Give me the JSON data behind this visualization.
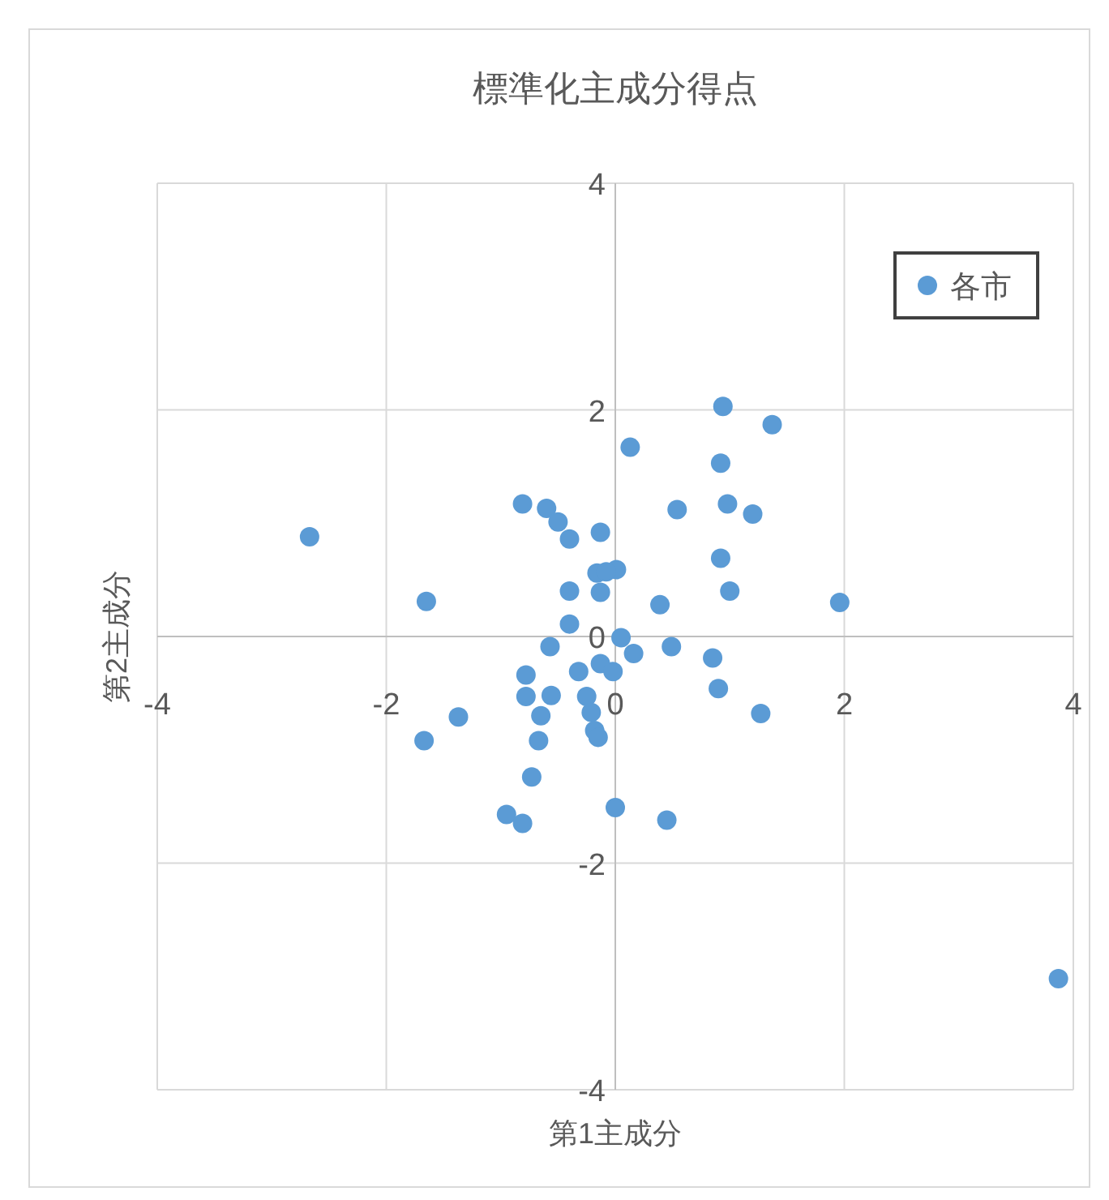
{
  "chart_data": {
    "type": "scatter",
    "title": "標準化主成分得点",
    "xlabel": "第1主成分",
    "ylabel": "第2主成分",
    "x": [
      -2.67,
      -1.65,
      -1.37,
      -1.67,
      -0.81,
      -0.6,
      -0.5,
      -0.4,
      -0.13,
      -0.16,
      0.01,
      -0.08,
      -0.4,
      -0.13,
      -0.4,
      -0.57,
      -0.78,
      -0.78,
      -0.56,
      -0.65,
      -0.67,
      -0.73,
      -0.95,
      -0.81,
      -0.32,
      -0.13,
      -0.02,
      -0.25,
      -0.21,
      -0.18,
      -0.15,
      0.05,
      0.16,
      0.0,
      0.45,
      0.39,
      0.49,
      0.54,
      0.13,
      0.94,
      1.37,
      0.92,
      0.98,
      1.2,
      0.92,
      1.0,
      1.96,
      0.85,
      0.9,
      1.27,
      3.87
    ],
    "series": [
      {
        "name": "各市",
        "color": "#5b9bd5",
        "values": [
          0.88,
          0.31,
          -0.71,
          -0.92,
          1.17,
          1.13,
          1.01,
          0.86,
          0.92,
          0.56,
          0.59,
          0.57,
          0.4,
          0.39,
          0.11,
          -0.09,
          -0.34,
          -0.53,
          -0.52,
          -0.7,
          -0.92,
          -1.24,
          -1.57,
          -1.65,
          -0.31,
          -0.24,
          -0.31,
          -0.53,
          -0.67,
          -0.83,
          -0.89,
          -0.01,
          -0.15,
          -1.51,
          -1.62,
          0.28,
          -0.09,
          1.12,
          1.67,
          2.03,
          1.87,
          1.53,
          1.17,
          1.08,
          0.69,
          0.4,
          0.3,
          -0.19,
          -0.46,
          -0.68,
          -3.02
        ]
      }
    ],
    "xlim": [
      -4,
      4
    ],
    "ylim": [
      -4,
      4
    ],
    "xticks": [
      -4,
      -2,
      0,
      2,
      4
    ],
    "yticks": [
      -4,
      -2,
      0,
      2,
      4
    ],
    "grid": true,
    "legend": "top right",
    "marker": "circle"
  }
}
